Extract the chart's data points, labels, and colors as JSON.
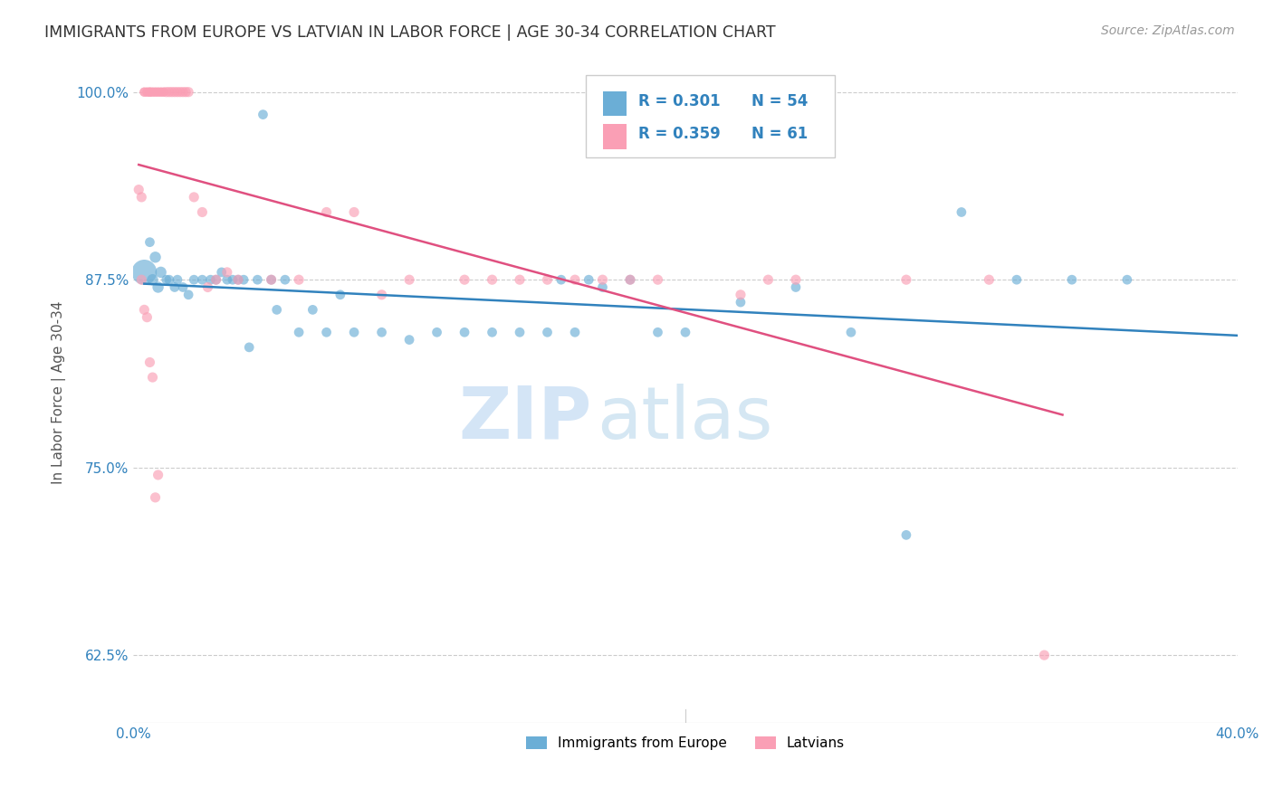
{
  "title": "IMMIGRANTS FROM EUROPE VS LATVIAN IN LABOR FORCE | AGE 30-34 CORRELATION CHART",
  "source": "Source: ZipAtlas.com",
  "ylabel": "In Labor Force | Age 30-34",
  "xlim": [
    0.0,
    0.4
  ],
  "ylim": [
    0.58,
    1.02
  ],
  "yticks": [
    0.625,
    0.75,
    0.875,
    1.0
  ],
  "ytick_labels": [
    "62.5%",
    "75.0%",
    "87.5%",
    "100.0%"
  ],
  "legend_r_blue": "R = 0.301",
  "legend_n_blue": "N = 54",
  "legend_r_pink": "R = 0.359",
  "legend_n_pink": "N = 61",
  "color_blue": "#6baed6",
  "color_blue_line": "#3182bd",
  "color_pink": "#fa9fb5",
  "color_pink_line": "#e05080",
  "color_axis_labels": "#3182bd",
  "watermark_zip": "ZIP",
  "watermark_atlas": "atlas",
  "blue_scatter_x": [
    0.004,
    0.006,
    0.007,
    0.008,
    0.009,
    0.01,
    0.012,
    0.013,
    0.015,
    0.016,
    0.018,
    0.02,
    0.022,
    0.025,
    0.028,
    0.03,
    0.032,
    0.034,
    0.036,
    0.038,
    0.04,
    0.045,
    0.05,
    0.055,
    0.06,
    0.065,
    0.07,
    0.075,
    0.08,
    0.09,
    0.1,
    0.11,
    0.12,
    0.13,
    0.14,
    0.15,
    0.16,
    0.17,
    0.18,
    0.19,
    0.2,
    0.22,
    0.24,
    0.26,
    0.28,
    0.3,
    0.32,
    0.34,
    0.36,
    0.155,
    0.165,
    0.042,
    0.047,
    0.052
  ],
  "blue_scatter_y": [
    0.88,
    0.9,
    0.875,
    0.89,
    0.87,
    0.88,
    0.875,
    0.875,
    0.87,
    0.875,
    0.87,
    0.865,
    0.875,
    0.875,
    0.875,
    0.875,
    0.88,
    0.875,
    0.875,
    0.875,
    0.875,
    0.875,
    0.875,
    0.875,
    0.84,
    0.855,
    0.84,
    0.865,
    0.84,
    0.84,
    0.835,
    0.84,
    0.84,
    0.84,
    0.84,
    0.84,
    0.84,
    0.87,
    0.875,
    0.84,
    0.84,
    0.86,
    0.87,
    0.84,
    0.705,
    0.92,
    0.875,
    0.875,
    0.875,
    0.875,
    0.875,
    0.83,
    0.985,
    0.855
  ],
  "pink_scatter_x": [
    0.002,
    0.003,
    0.004,
    0.004,
    0.005,
    0.005,
    0.006,
    0.006,
    0.006,
    0.007,
    0.007,
    0.008,
    0.008,
    0.009,
    0.009,
    0.01,
    0.01,
    0.011,
    0.011,
    0.012,
    0.013,
    0.014,
    0.015,
    0.016,
    0.017,
    0.018,
    0.019,
    0.02,
    0.022,
    0.025,
    0.027,
    0.03,
    0.034,
    0.038,
    0.05,
    0.06,
    0.07,
    0.08,
    0.09,
    0.1,
    0.12,
    0.13,
    0.14,
    0.15,
    0.16,
    0.17,
    0.18,
    0.19,
    0.22,
    0.23,
    0.24,
    0.28,
    0.31,
    0.33,
    0.003,
    0.004,
    0.005,
    0.006,
    0.007,
    0.008,
    0.009
  ],
  "pink_scatter_y": [
    0.935,
    0.93,
    1.0,
    1.0,
    1.0,
    1.0,
    1.0,
    1.0,
    1.0,
    1.0,
    1.0,
    1.0,
    1.0,
    1.0,
    1.0,
    1.0,
    1.0,
    1.0,
    1.0,
    1.0,
    1.0,
    1.0,
    1.0,
    1.0,
    1.0,
    1.0,
    1.0,
    1.0,
    0.93,
    0.92,
    0.87,
    0.875,
    0.88,
    0.875,
    0.875,
    0.875,
    0.92,
    0.92,
    0.865,
    0.875,
    0.875,
    0.875,
    0.875,
    0.875,
    0.875,
    0.875,
    0.875,
    0.875,
    0.865,
    0.875,
    0.875,
    0.875,
    0.875,
    0.625,
    0.875,
    0.855,
    0.85,
    0.82,
    0.81,
    0.73,
    0.745
  ]
}
